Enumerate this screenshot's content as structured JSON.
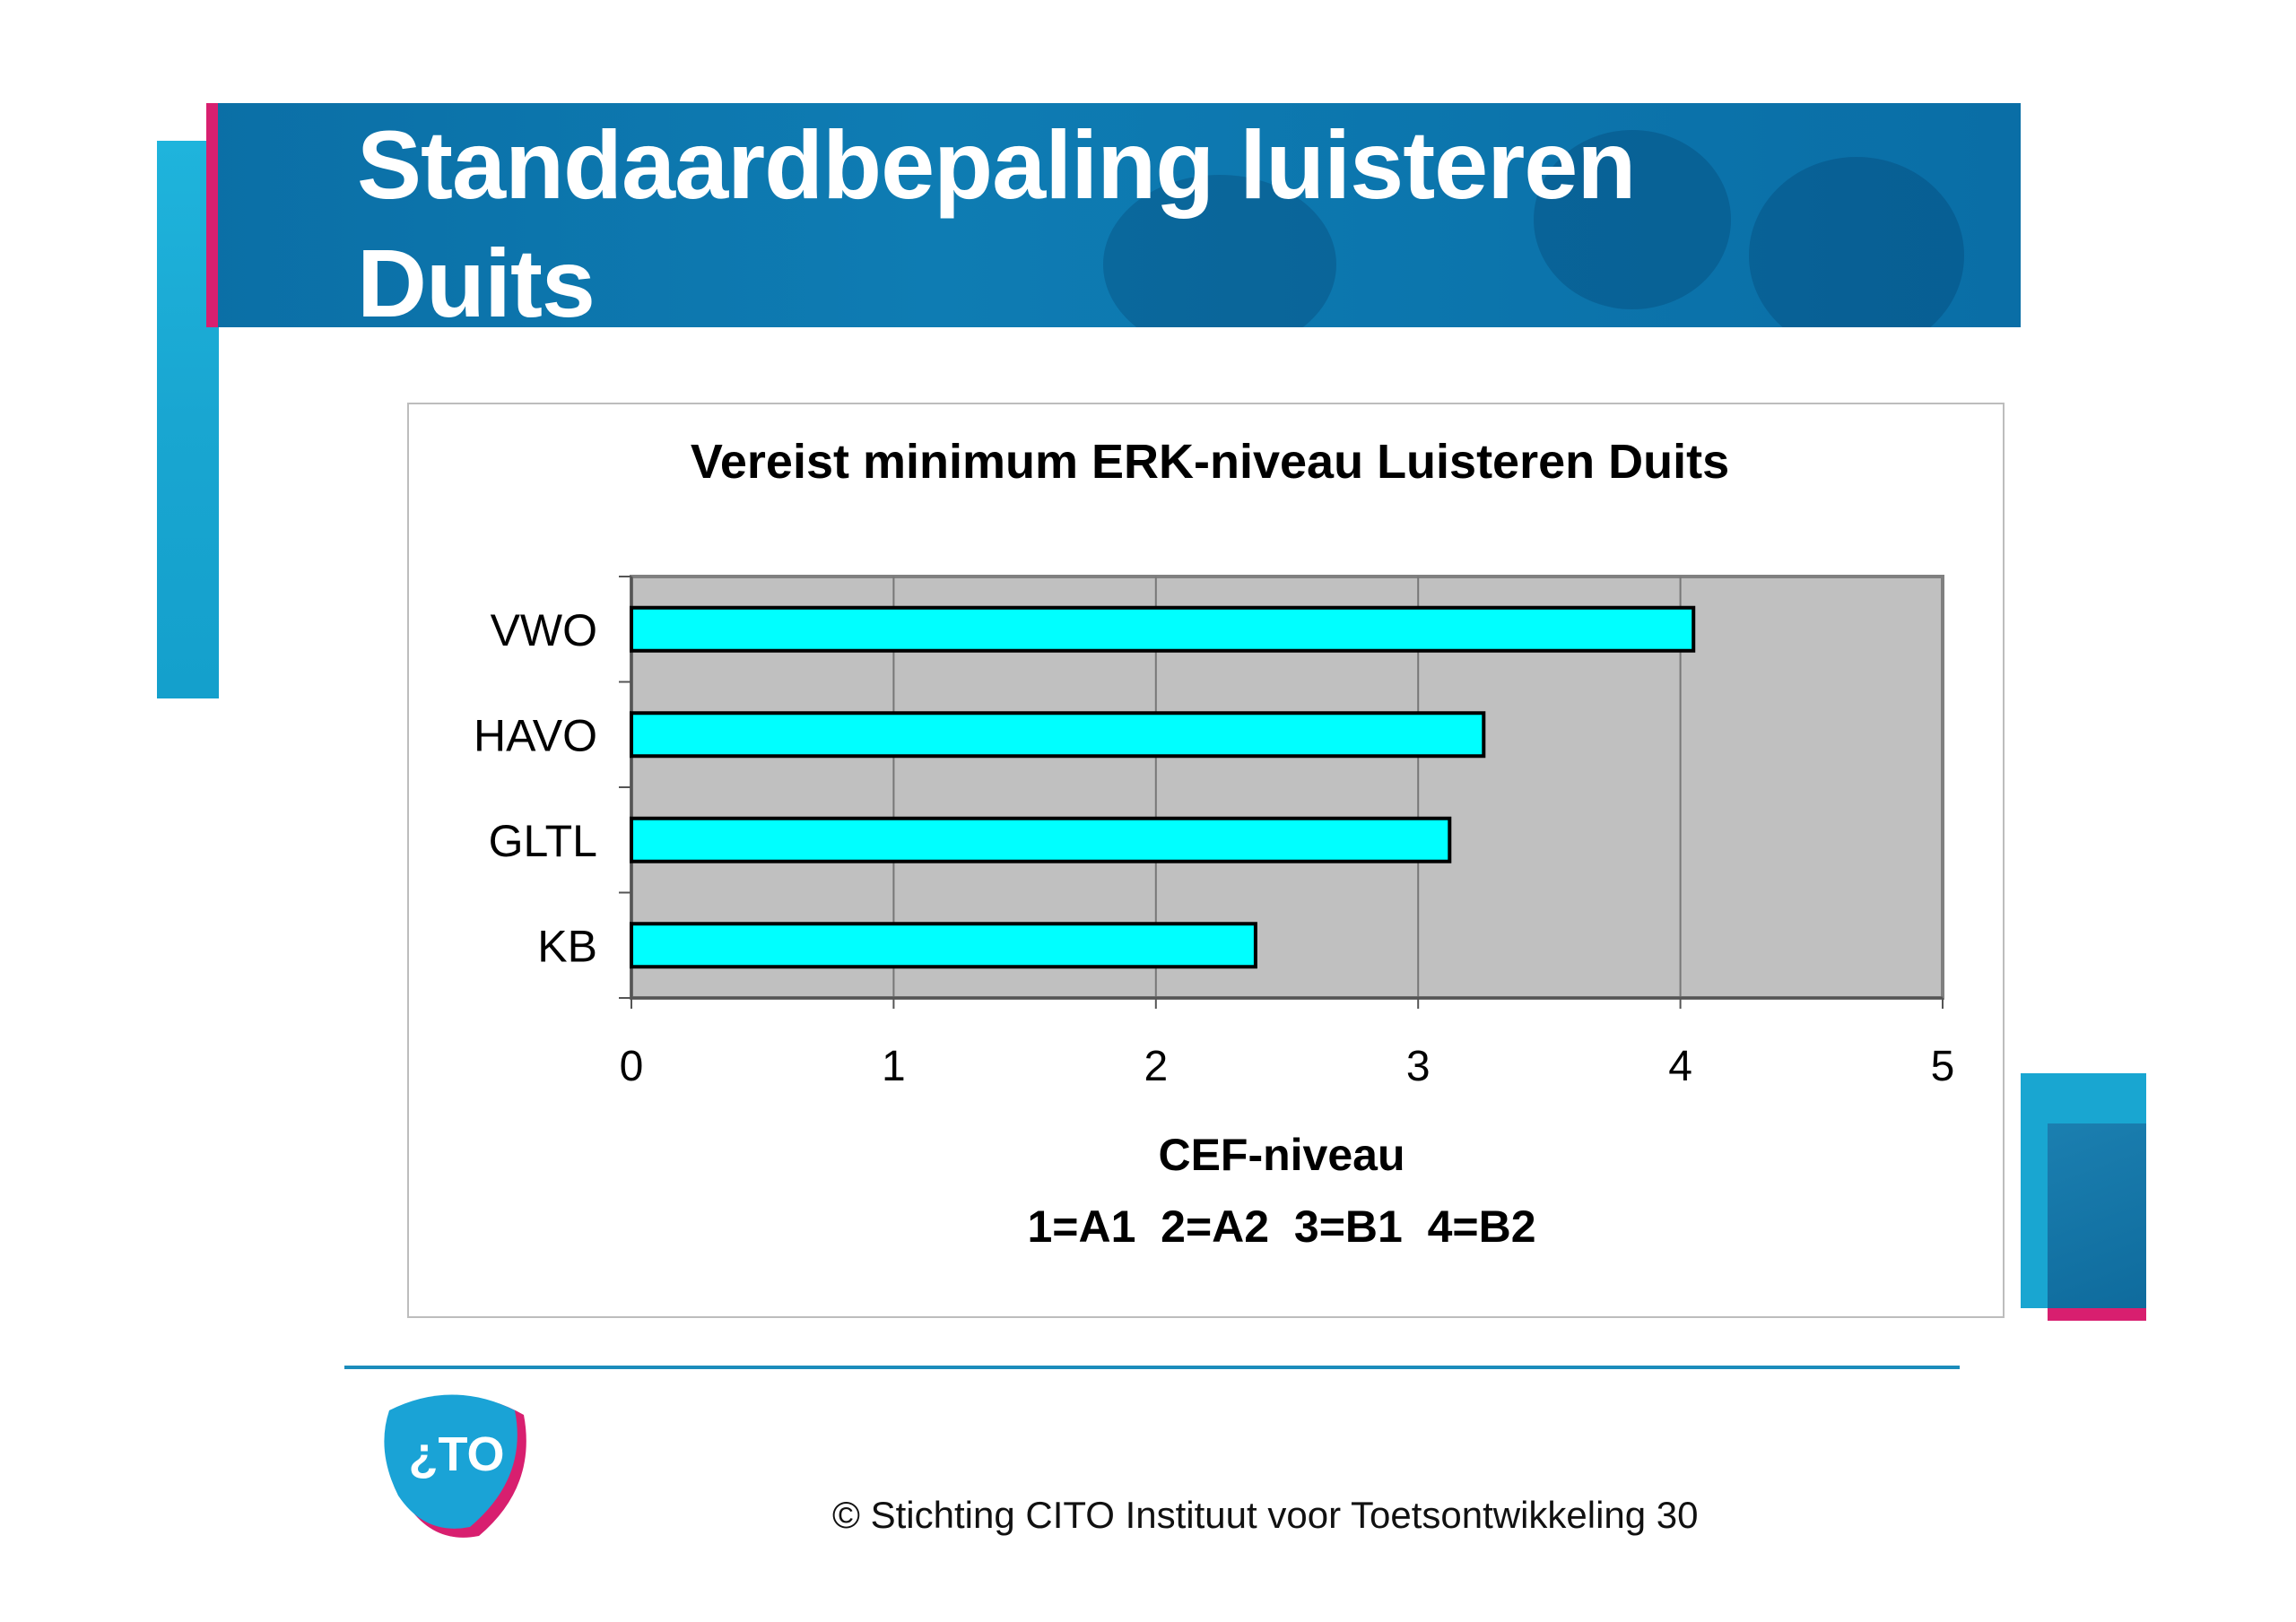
{
  "slide": {
    "title_line1": "Standaardbepaling luisteren",
    "title_line2": "Duits"
  },
  "chart_data": {
    "type": "bar",
    "orientation": "horizontal",
    "title": "Vereist minimum ERK-niveau Luisteren Duits",
    "categories": [
      "VWO",
      "HAVO",
      "GLTL",
      "KB"
    ],
    "values": [
      4.05,
      3.25,
      3.12,
      2.38
    ],
    "xlabel": "CEF-niveau",
    "xlabel_line2": "1=A1  2=A2  3=B1  4=B2",
    "xlim": [
      0,
      5
    ],
    "xticks": [
      "0",
      "1",
      "2",
      "3",
      "4",
      "5"
    ],
    "grid": true,
    "legend": "none",
    "colors": {
      "bar": "#00ffff",
      "plot_bg": "#c0c0c0"
    }
  },
  "footer": {
    "copyright": "© Stichting CITO Instituut voor Toetsontwikkeling 30",
    "logo_text": "¿TO"
  },
  "colors": {
    "brand_blue": "#0e7cb3",
    "brand_pink": "#d81f6f",
    "brand_cyan": "#19a6d1"
  }
}
